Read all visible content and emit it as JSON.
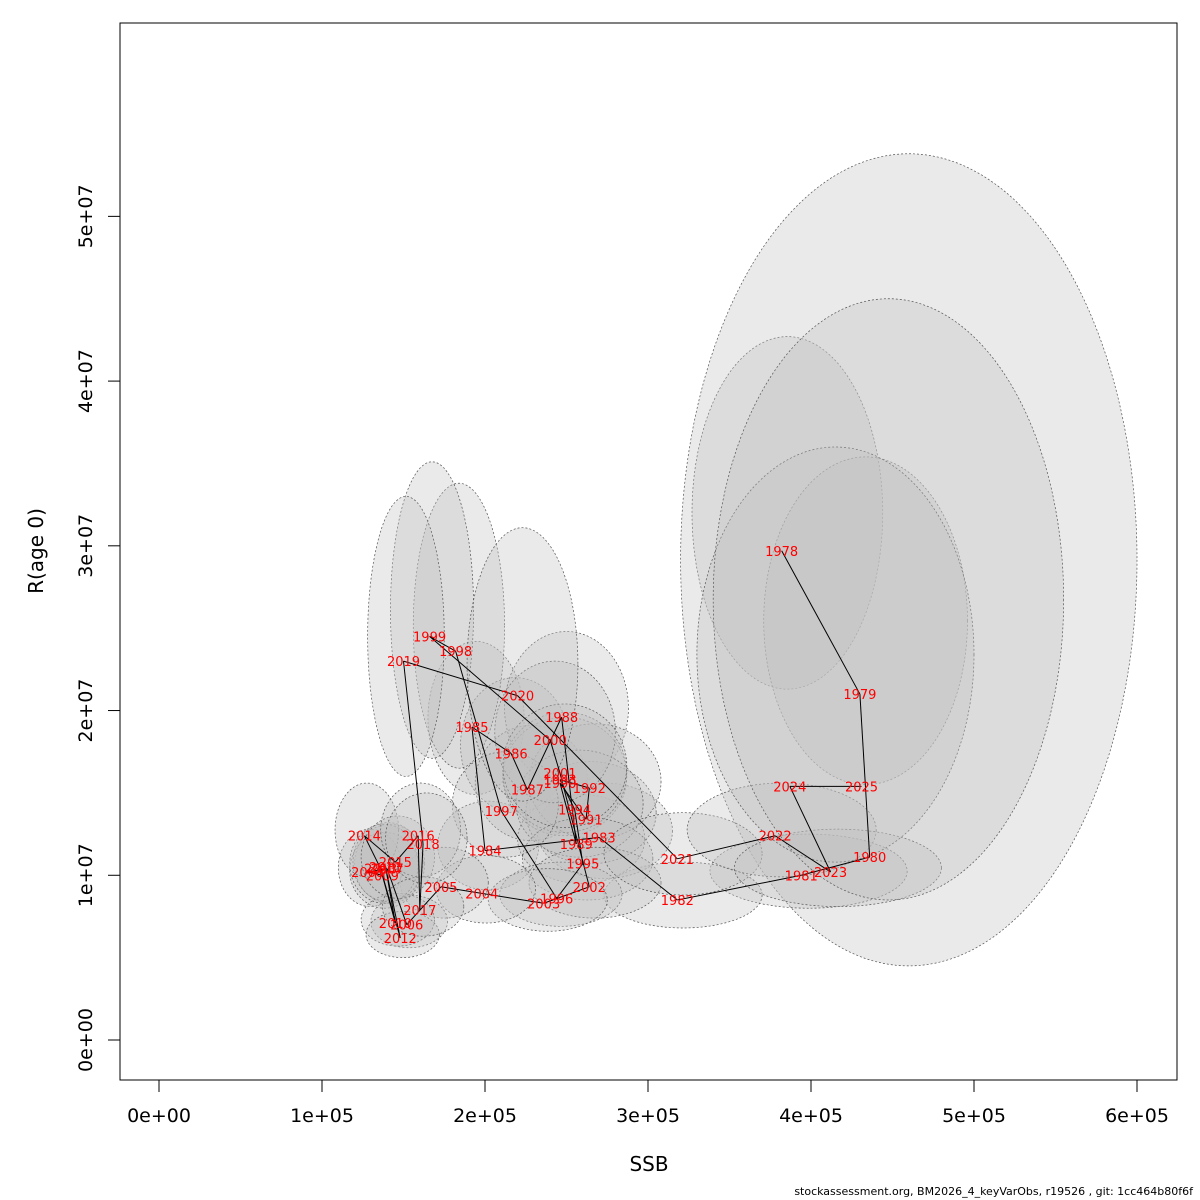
{
  "chart_data": {
    "type": "scatter",
    "title": "",
    "xlabel": "SSB",
    "ylabel": "R(age 0)",
    "xlim": [
      0,
      600000
    ],
    "ylim": [
      0,
      55000000
    ],
    "x_ticks": [
      {
        "value": 0,
        "label": "0e+00"
      },
      {
        "value": 100000,
        "label": "1e+05"
      },
      {
        "value": 200000,
        "label": "2e+05"
      },
      {
        "value": 300000,
        "label": "3e+05"
      },
      {
        "value": 400000,
        "label": "4e+05"
      },
      {
        "value": 500000,
        "label": "5e+05"
      },
      {
        "value": 600000,
        "label": "6e+05"
      }
    ],
    "y_ticks": [
      {
        "value": 0,
        "label": "0e+00"
      },
      {
        "value": 10000000,
        "label": "1e+07"
      },
      {
        "value": 20000000,
        "label": "2e+07"
      },
      {
        "value": 30000000,
        "label": "3e+07"
      },
      {
        "value": 40000000,
        "label": "4e+07"
      },
      {
        "value": 50000000,
        "label": "5e+07"
      }
    ],
    "grid": false,
    "legend": "none",
    "colors": {
      "label": "#ff0000",
      "line": "#000000",
      "ellipse_fill": "#bebebe",
      "ellipse_stroke": "#555555"
    },
    "points": [
      {
        "year": "1978",
        "ssb": 382000,
        "rec": 29700000,
        "ssb_lo": 327000,
        "ssb_hi": 444000,
        "rec_lo": 21300000,
        "rec_hi": 42700000
      },
      {
        "year": "1979",
        "ssb": 430000,
        "rec": 21000000,
        "ssb_lo": 371000,
        "ssb_hi": 496000,
        "rec_lo": 15500000,
        "rec_hi": 35400000
      },
      {
        "year": "1980",
        "ssb": 436000,
        "rec": 11100000,
        "ssb_lo": 320000,
        "ssb_hi": 600000,
        "rec_lo": 4500000,
        "rec_hi": 53800000
      },
      {
        "year": "1981",
        "ssb": 394000,
        "rec": 10000000,
        "ssb_lo": 338000,
        "ssb_hi": 459000,
        "rec_lo": 8000000,
        "rec_hi": 12500000
      },
      {
        "year": "1982",
        "ssb": 318000,
        "rec": 8500000,
        "ssb_lo": 273000,
        "ssb_hi": 370000,
        "rec_lo": 6800000,
        "rec_hi": 10800000
      },
      {
        "year": "1983",
        "ssb": 270000,
        "rec": 12300000,
        "ssb_lo": 232000,
        "ssb_hi": 315000,
        "rec_lo": 9800000,
        "rec_hi": 15600000
      },
      {
        "year": "1984",
        "ssb": 200000,
        "rec": 11500000,
        "ssb_lo": 171000,
        "ssb_hi": 233000,
        "rec_lo": 9100000,
        "rec_hi": 14500000
      },
      {
        "year": "1985",
        "ssb": 192000,
        "rec": 19000000,
        "ssb_lo": 165000,
        "ssb_hi": 224000,
        "rec_lo": 14900000,
        "rec_hi": 24200000
      },
      {
        "year": "1986",
        "ssb": 216000,
        "rec": 17400000,
        "ssb_lo": 185000,
        "ssb_hi": 252000,
        "rec_lo": 13800000,
        "rec_hi": 22000000
      },
      {
        "year": "1987",
        "ssb": 226000,
        "rec": 15200000,
        "ssb_lo": 194000,
        "ssb_hi": 263000,
        "rec_lo": 12100000,
        "rec_hi": 19100000
      },
      {
        "year": "1988",
        "ssb": 247000,
        "rec": 19600000,
        "ssb_lo": 212000,
        "ssb_hi": 288000,
        "rec_lo": 15500000,
        "rec_hi": 24800000
      },
      {
        "year": "1989",
        "ssb": 256000,
        "rec": 11900000,
        "ssb_lo": 220000,
        "ssb_hi": 298000,
        "rec_lo": 9500000,
        "rec_hi": 14900000
      },
      {
        "year": "1990",
        "ssb": 246000,
        "rec": 15600000,
        "ssb_lo": 211000,
        "ssb_hi": 287000,
        "rec_lo": 12400000,
        "rec_hi": 19600000
      },
      {
        "year": "1991",
        "ssb": 262000,
        "rec": 13400000,
        "ssb_lo": 225000,
        "ssb_hi": 305000,
        "rec_lo": 10700000,
        "rec_hi": 16900000
      },
      {
        "year": "1992",
        "ssb": 264000,
        "rec": 15300000,
        "ssb_lo": 227000,
        "ssb_hi": 308000,
        "rec_lo": 12200000,
        "rec_hi": 19200000
      },
      {
        "year": "1993",
        "ssb": 246000,
        "rec": 15800000,
        "ssb_lo": 211000,
        "ssb_hi": 287000,
        "rec_lo": 12600000,
        "rec_hi": 19900000
      },
      {
        "year": "1994",
        "ssb": 255000,
        "rec": 14000000,
        "ssb_lo": 219000,
        "ssb_hi": 297000,
        "rec_lo": 11100000,
        "rec_hi": 17600000
      },
      {
        "year": "1995",
        "ssb": 260000,
        "rec": 10700000,
        "ssb_lo": 223000,
        "ssb_hi": 303000,
        "rec_lo": 8500000,
        "rec_hi": 13500000
      },
      {
        "year": "1996",
        "ssb": 244000,
        "rec": 8600000,
        "ssb_lo": 209000,
        "ssb_hi": 284000,
        "rec_lo": 6900000,
        "rec_hi": 10800000
      },
      {
        "year": "1997",
        "ssb": 210000,
        "rec": 13900000,
        "ssb_lo": 180000,
        "ssb_hi": 245000,
        "rec_lo": 11100000,
        "rec_hi": 17500000
      },
      {
        "year": "1998",
        "ssb": 182000,
        "rec": 23600000,
        "ssb_lo": 156000,
        "ssb_hi": 212000,
        "rec_lo": 16500000,
        "rec_hi": 33800000
      },
      {
        "year": "1999",
        "ssb": 166000,
        "rec": 24500000,
        "ssb_lo": 142000,
        "ssb_hi": 193000,
        "rec_lo": 17100000,
        "rec_hi": 35100000
      },
      {
        "year": "2000",
        "ssb": 240000,
        "rec": 18200000,
        "ssb_lo": 206000,
        "ssb_hi": 280000,
        "rec_lo": 14400000,
        "rec_hi": 23000000
      },
      {
        "year": "2001",
        "ssb": 246000,
        "rec": 16200000,
        "ssb_lo": 211000,
        "ssb_hi": 287000,
        "rec_lo": 12900000,
        "rec_hi": 20400000
      },
      {
        "year": "2002",
        "ssb": 264000,
        "rec": 9300000,
        "ssb_lo": 227000,
        "ssb_hi": 308000,
        "rec_lo": 7400000,
        "rec_hi": 11700000
      },
      {
        "year": "2003",
        "ssb": 236000,
        "rec": 8300000,
        "ssb_lo": 202000,
        "ssb_hi": 275000,
        "rec_lo": 6600000,
        "rec_hi": 10400000
      },
      {
        "year": "2004",
        "ssb": 198000,
        "rec": 8900000,
        "ssb_lo": 170000,
        "ssb_hi": 231000,
        "rec_lo": 7100000,
        "rec_hi": 11200000
      },
      {
        "year": "2005",
        "ssb": 173000,
        "rec": 9300000,
        "ssb_lo": 148000,
        "ssb_hi": 202000,
        "rec_lo": 7400000,
        "rec_hi": 11700000
      },
      {
        "year": "2006",
        "ssb": 152000,
        "rec": 7000000,
        "ssb_lo": 130000,
        "ssb_hi": 177000,
        "rec_lo": 5600000,
        "rec_hi": 8800000
      },
      {
        "year": "2007",
        "ssb": 140000,
        "rec": 10400000,
        "ssb_lo": 120000,
        "ssb_hi": 163000,
        "rec_lo": 8300000,
        "rec_hi": 13100000
      },
      {
        "year": "2008",
        "ssb": 128000,
        "rec": 10200000,
        "ssb_lo": 110000,
        "ssb_hi": 149000,
        "rec_lo": 8100000,
        "rec_hi": 12800000
      },
      {
        "year": "2009",
        "ssb": 137000,
        "rec": 10000000,
        "ssb_lo": 117000,
        "ssb_hi": 160000,
        "rec_lo": 8000000,
        "rec_hi": 12600000
      },
      {
        "year": "2010",
        "ssb": 145000,
        "rec": 7100000,
        "ssb_lo": 124000,
        "ssb_hi": 169000,
        "rec_lo": 5700000,
        "rec_hi": 8900000
      },
      {
        "year": "2011",
        "ssb": 139000,
        "rec": 10500000,
        "ssb_lo": 119000,
        "ssb_hi": 162000,
        "rec_lo": 8400000,
        "rec_hi": 13200000
      },
      {
        "year": "2012",
        "ssb": 148000,
        "rec": 6200000,
        "ssb_lo": 127000,
        "ssb_hi": 172000,
        "rec_lo": 5000000,
        "rec_hi": 7800000
      },
      {
        "year": "2013",
        "ssb": 136000,
        "rec": 10400000,
        "ssb_lo": 117000,
        "ssb_hi": 159000,
        "rec_lo": 8300000,
        "rec_hi": 13100000
      },
      {
        "year": "2014",
        "ssb": 126000,
        "rec": 12400000,
        "ssb_lo": 108000,
        "ssb_hi": 147000,
        "rec_lo": 9900000,
        "rec_hi": 15600000
      },
      {
        "year": "2015",
        "ssb": 145000,
        "rec": 10800000,
        "ssb_lo": 124000,
        "ssb_hi": 169000,
        "rec_lo": 8600000,
        "rec_hi": 13600000
      },
      {
        "year": "2016",
        "ssb": 159000,
        "rec": 12400000,
        "ssb_lo": 136000,
        "ssb_hi": 185000,
        "rec_lo": 9900000,
        "rec_hi": 15600000
      },
      {
        "year": "2017",
        "ssb": 160000,
        "rec": 7900000,
        "ssb_lo": 137000,
        "ssb_hi": 187000,
        "rec_lo": 6300000,
        "rec_hi": 9900000
      },
      {
        "year": "2018",
        "ssb": 162000,
        "rec": 11900000,
        "ssb_lo": 139000,
        "ssb_hi": 189000,
        "rec_lo": 9500000,
        "rec_hi": 15000000
      },
      {
        "year": "2019",
        "ssb": 150000,
        "rec": 23000000,
        "ssb_lo": 128000,
        "ssb_hi": 175000,
        "rec_lo": 16000000,
        "rec_hi": 33000000
      },
      {
        "year": "2020",
        "ssb": 220000,
        "rec": 20900000,
        "ssb_lo": 189000,
        "ssb_hi": 257000,
        "rec_lo": 14500000,
        "rec_hi": 31100000
      },
      {
        "year": "2021",
        "ssb": 318000,
        "rec": 11000000,
        "ssb_lo": 273000,
        "ssb_hi": 370000,
        "rec_lo": 8800000,
        "rec_hi": 13800000
      },
      {
        "year": "2022",
        "ssb": 378000,
        "rec": 12400000,
        "ssb_lo": 324000,
        "ssb_hi": 440000,
        "rec_lo": 9900000,
        "rec_hi": 15600000
      },
      {
        "year": "2023",
        "ssb": 412000,
        "rec": 10200000,
        "ssb_lo": 353000,
        "ssb_hi": 480000,
        "rec_lo": 8100000,
        "rec_hi": 12800000
      },
      {
        "year": "2024",
        "ssb": 387000,
        "rec": 15400000,
        "ssb_lo": 330000,
        "ssb_hi": 500000,
        "rec_lo": 10800000,
        "rec_hi": 36000000
      },
      {
        "year": "2025",
        "ssb": 431000,
        "rec": 15400000,
        "ssb_lo": 340000,
        "ssb_hi": 555000,
        "rec_lo": 8500000,
        "rec_hi": 45000000
      }
    ]
  },
  "footer": {
    "text": "stockassessment.org, BM2026_4_keyVarObs, r19526 , git: 1cc464b80f6f"
  }
}
